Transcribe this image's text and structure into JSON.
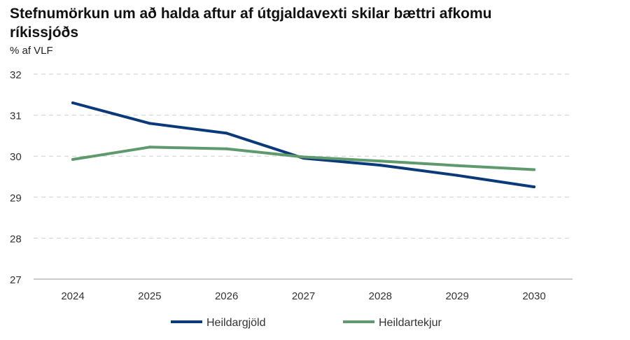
{
  "chart_data": {
    "type": "line",
    "title": "Stefnumörkun um að halda aftur af útgjaldavexti skilar bættri afkomu ríkissjóðs",
    "ylabel": "% af VLF",
    "xlabel": "",
    "categories": [
      "2024",
      "2025",
      "2026",
      "2027",
      "2028",
      "2029",
      "2030"
    ],
    "series": [
      {
        "name": "Heildargjöld",
        "color": "#0b3a7a",
        "values": [
          31.3,
          30.8,
          30.56,
          29.95,
          29.78,
          29.53,
          29.25
        ]
      },
      {
        "name": "Heildartekjur",
        "color": "#5f9a6d",
        "values": [
          29.92,
          30.22,
          30.18,
          29.98,
          29.88,
          29.77,
          29.67
        ]
      }
    ],
    "ylim": [
      27,
      32
    ],
    "yticks": [
      27,
      28,
      29,
      30,
      31,
      32
    ],
    "grid": true,
    "legend": "bottom"
  }
}
